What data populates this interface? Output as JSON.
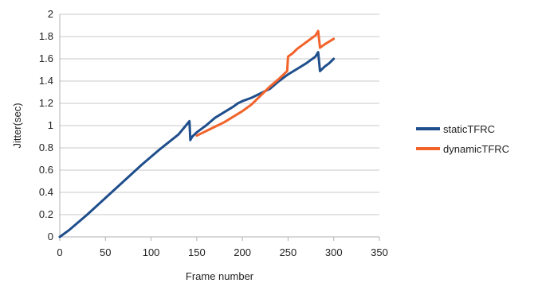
{
  "chart_data": {
    "type": "line",
    "xlabel": "Frame number",
    "ylabel": "Jitter(sec)",
    "xlim": [
      0,
      350
    ],
    "ylim": [
      0,
      2
    ],
    "xticks": [
      0,
      50,
      100,
      150,
      200,
      250,
      300,
      350
    ],
    "yticks": [
      0,
      0.2,
      0.4,
      0.6,
      0.8,
      1,
      1.2,
      1.4,
      1.6,
      1.8,
      2
    ],
    "grid": "horizontal",
    "legend_position": "right",
    "series": [
      {
        "name": "staticTFRC",
        "color": "#1f4e8c",
        "x": [
          0,
          10,
          30,
          50,
          70,
          90,
          110,
          130,
          142,
          143,
          145,
          150,
          160,
          170,
          180,
          190,
          195,
          200,
          210,
          220,
          230,
          240,
          250,
          260,
          270,
          280,
          283,
          285,
          290,
          295,
          300
        ],
        "y": [
          0,
          0.06,
          0.2,
          0.35,
          0.5,
          0.65,
          0.79,
          0.92,
          1.04,
          0.87,
          0.9,
          0.94,
          1.0,
          1.07,
          1.12,
          1.17,
          1.2,
          1.22,
          1.25,
          1.29,
          1.33,
          1.4,
          1.46,
          1.51,
          1.56,
          1.62,
          1.66,
          1.49,
          1.53,
          1.56,
          1.6
        ]
      },
      {
        "name": "dynamicTFRC",
        "color": "#f2632b",
        "x": [
          150,
          160,
          170,
          180,
          190,
          200,
          210,
          220,
          230,
          240,
          249,
          250,
          255,
          260,
          270,
          280,
          283,
          285,
          290,
          300
        ],
        "y": [
          0.91,
          0.95,
          0.99,
          1.03,
          1.08,
          1.13,
          1.19,
          1.27,
          1.35,
          1.42,
          1.49,
          1.62,
          1.65,
          1.69,
          1.75,
          1.81,
          1.85,
          1.7,
          1.73,
          1.78
        ]
      }
    ]
  }
}
